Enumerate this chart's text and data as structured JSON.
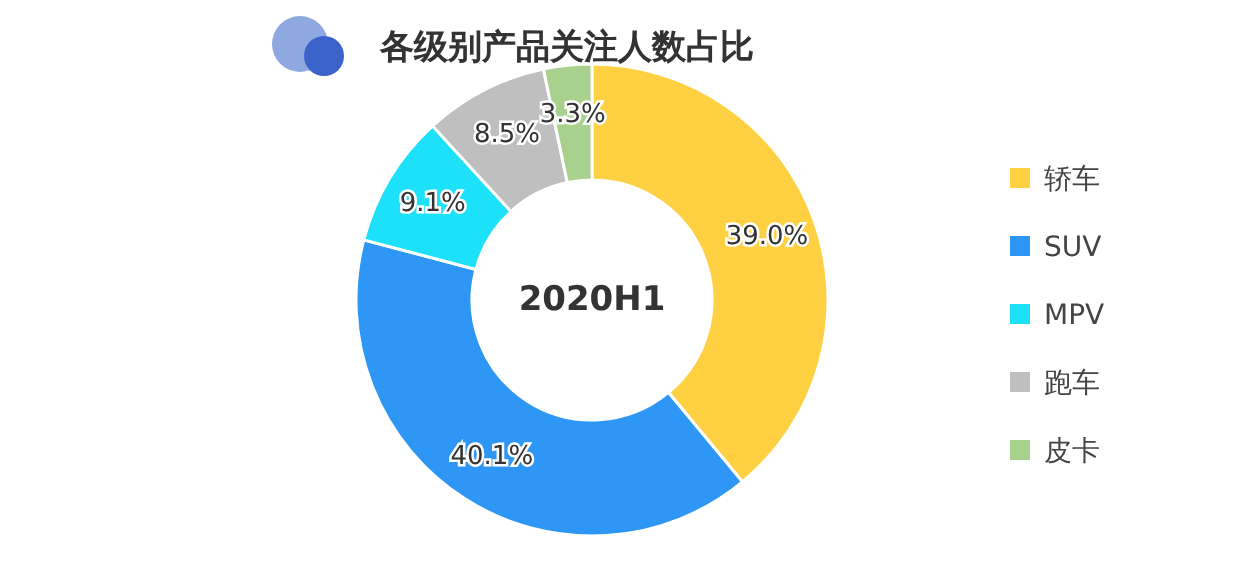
{
  "chart_data": {
    "type": "donut",
    "title": "各级别产品关注人数占比",
    "categories": [
      "轿车",
      "SUV",
      "MPV",
      "跑车",
      "皮卡"
    ],
    "values": [
      39.0,
      40.1,
      9.1,
      8.5,
      3.3
    ],
    "colors": [
      "#ffd042",
      "#2e96f5",
      "#1de0f9",
      "#bfbfbf",
      "#a9d18e"
    ],
    "value_labels": [
      "39.0%",
      "40.1%",
      "9.1%",
      "8.5%",
      "3.3%"
    ],
    "annotations": [
      "2020H1"
    ],
    "legend": "right"
  }
}
